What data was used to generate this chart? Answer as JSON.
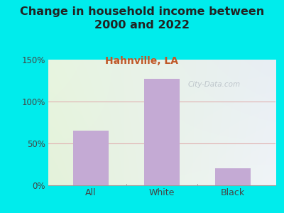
{
  "title": "Change in household income between\n2000 and 2022",
  "subtitle": "Hahnville, LA",
  "categories": [
    "All",
    "White",
    "Black"
  ],
  "values": [
    65,
    127,
    20
  ],
  "bar_color": "#c4aad4",
  "background_color": "#00ecec",
  "plot_bg_color_tl": "#e8f5e0",
  "plot_bg_color_tr": "#e8eef4",
  "plot_bg_color_br": "#f0f4f8",
  "title_fontsize": 11.5,
  "subtitle_fontsize": 10,
  "subtitle_color": "#c05828",
  "title_color": "#222222",
  "tick_color": "#444444",
  "ylim": [
    0,
    150
  ],
  "yticks": [
    0,
    50,
    100,
    150
  ],
  "ytick_labels": [
    "0%",
    "50%",
    "100%",
    "150%"
  ],
  "grid_color": "#e0b0b0",
  "watermark": "City-Data.com"
}
